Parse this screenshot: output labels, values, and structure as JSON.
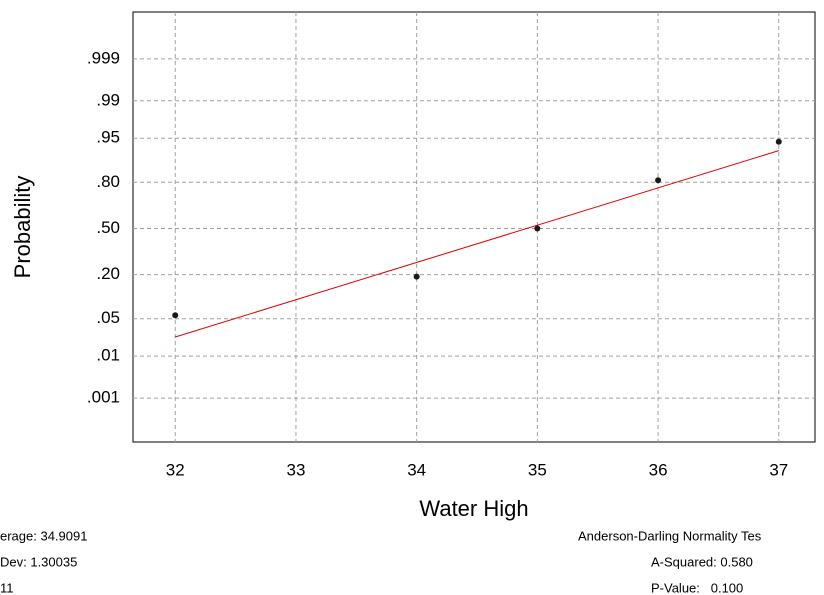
{
  "chart_data": {
    "type": "probability-plot",
    "xlabel": "Water High",
    "ylabel": "Probability",
    "xlim": [
      31.65,
      37.3
    ],
    "xticks": [
      32,
      33,
      34,
      35,
      36,
      37
    ],
    "ylim": [
      5e-05,
      0.99996
    ],
    "yscale": "probability",
    "yticks": [
      {
        "value": 0.001,
        "label": ".001"
      },
      {
        "value": 0.01,
        "label": ".01"
      },
      {
        "value": 0.05,
        "label": ".05"
      },
      {
        "value": 0.2,
        "label": ".20"
      },
      {
        "value": 0.5,
        "label": ".50"
      },
      {
        "value": 0.8,
        "label": ".80"
      },
      {
        "value": 0.95,
        "label": ".95"
      },
      {
        "value": 0.99,
        "label": ".99"
      },
      {
        "value": 0.999,
        "label": ".999"
      }
    ],
    "grid": true,
    "series": [
      {
        "color": "#1a1a1a",
        "x": [
          32,
          34,
          35,
          36,
          37
        ],
        "values": [
          0.057,
          0.19,
          0.5,
          0.81,
          0.943
        ]
      }
    ],
    "fit_line": {
      "color": "#e00000",
      "x": [
        32,
        37
      ],
      "values": [
        0.024,
        0.922
      ]
    },
    "stats_left": [
      "erage: 34.9091",
      "Dev: 1.30035",
      "11"
    ],
    "stats_right": [
      "Anderson-Darling Normality Tes",
      "A-Squared: 0.580",
      "P-Value:   0.100"
    ]
  }
}
